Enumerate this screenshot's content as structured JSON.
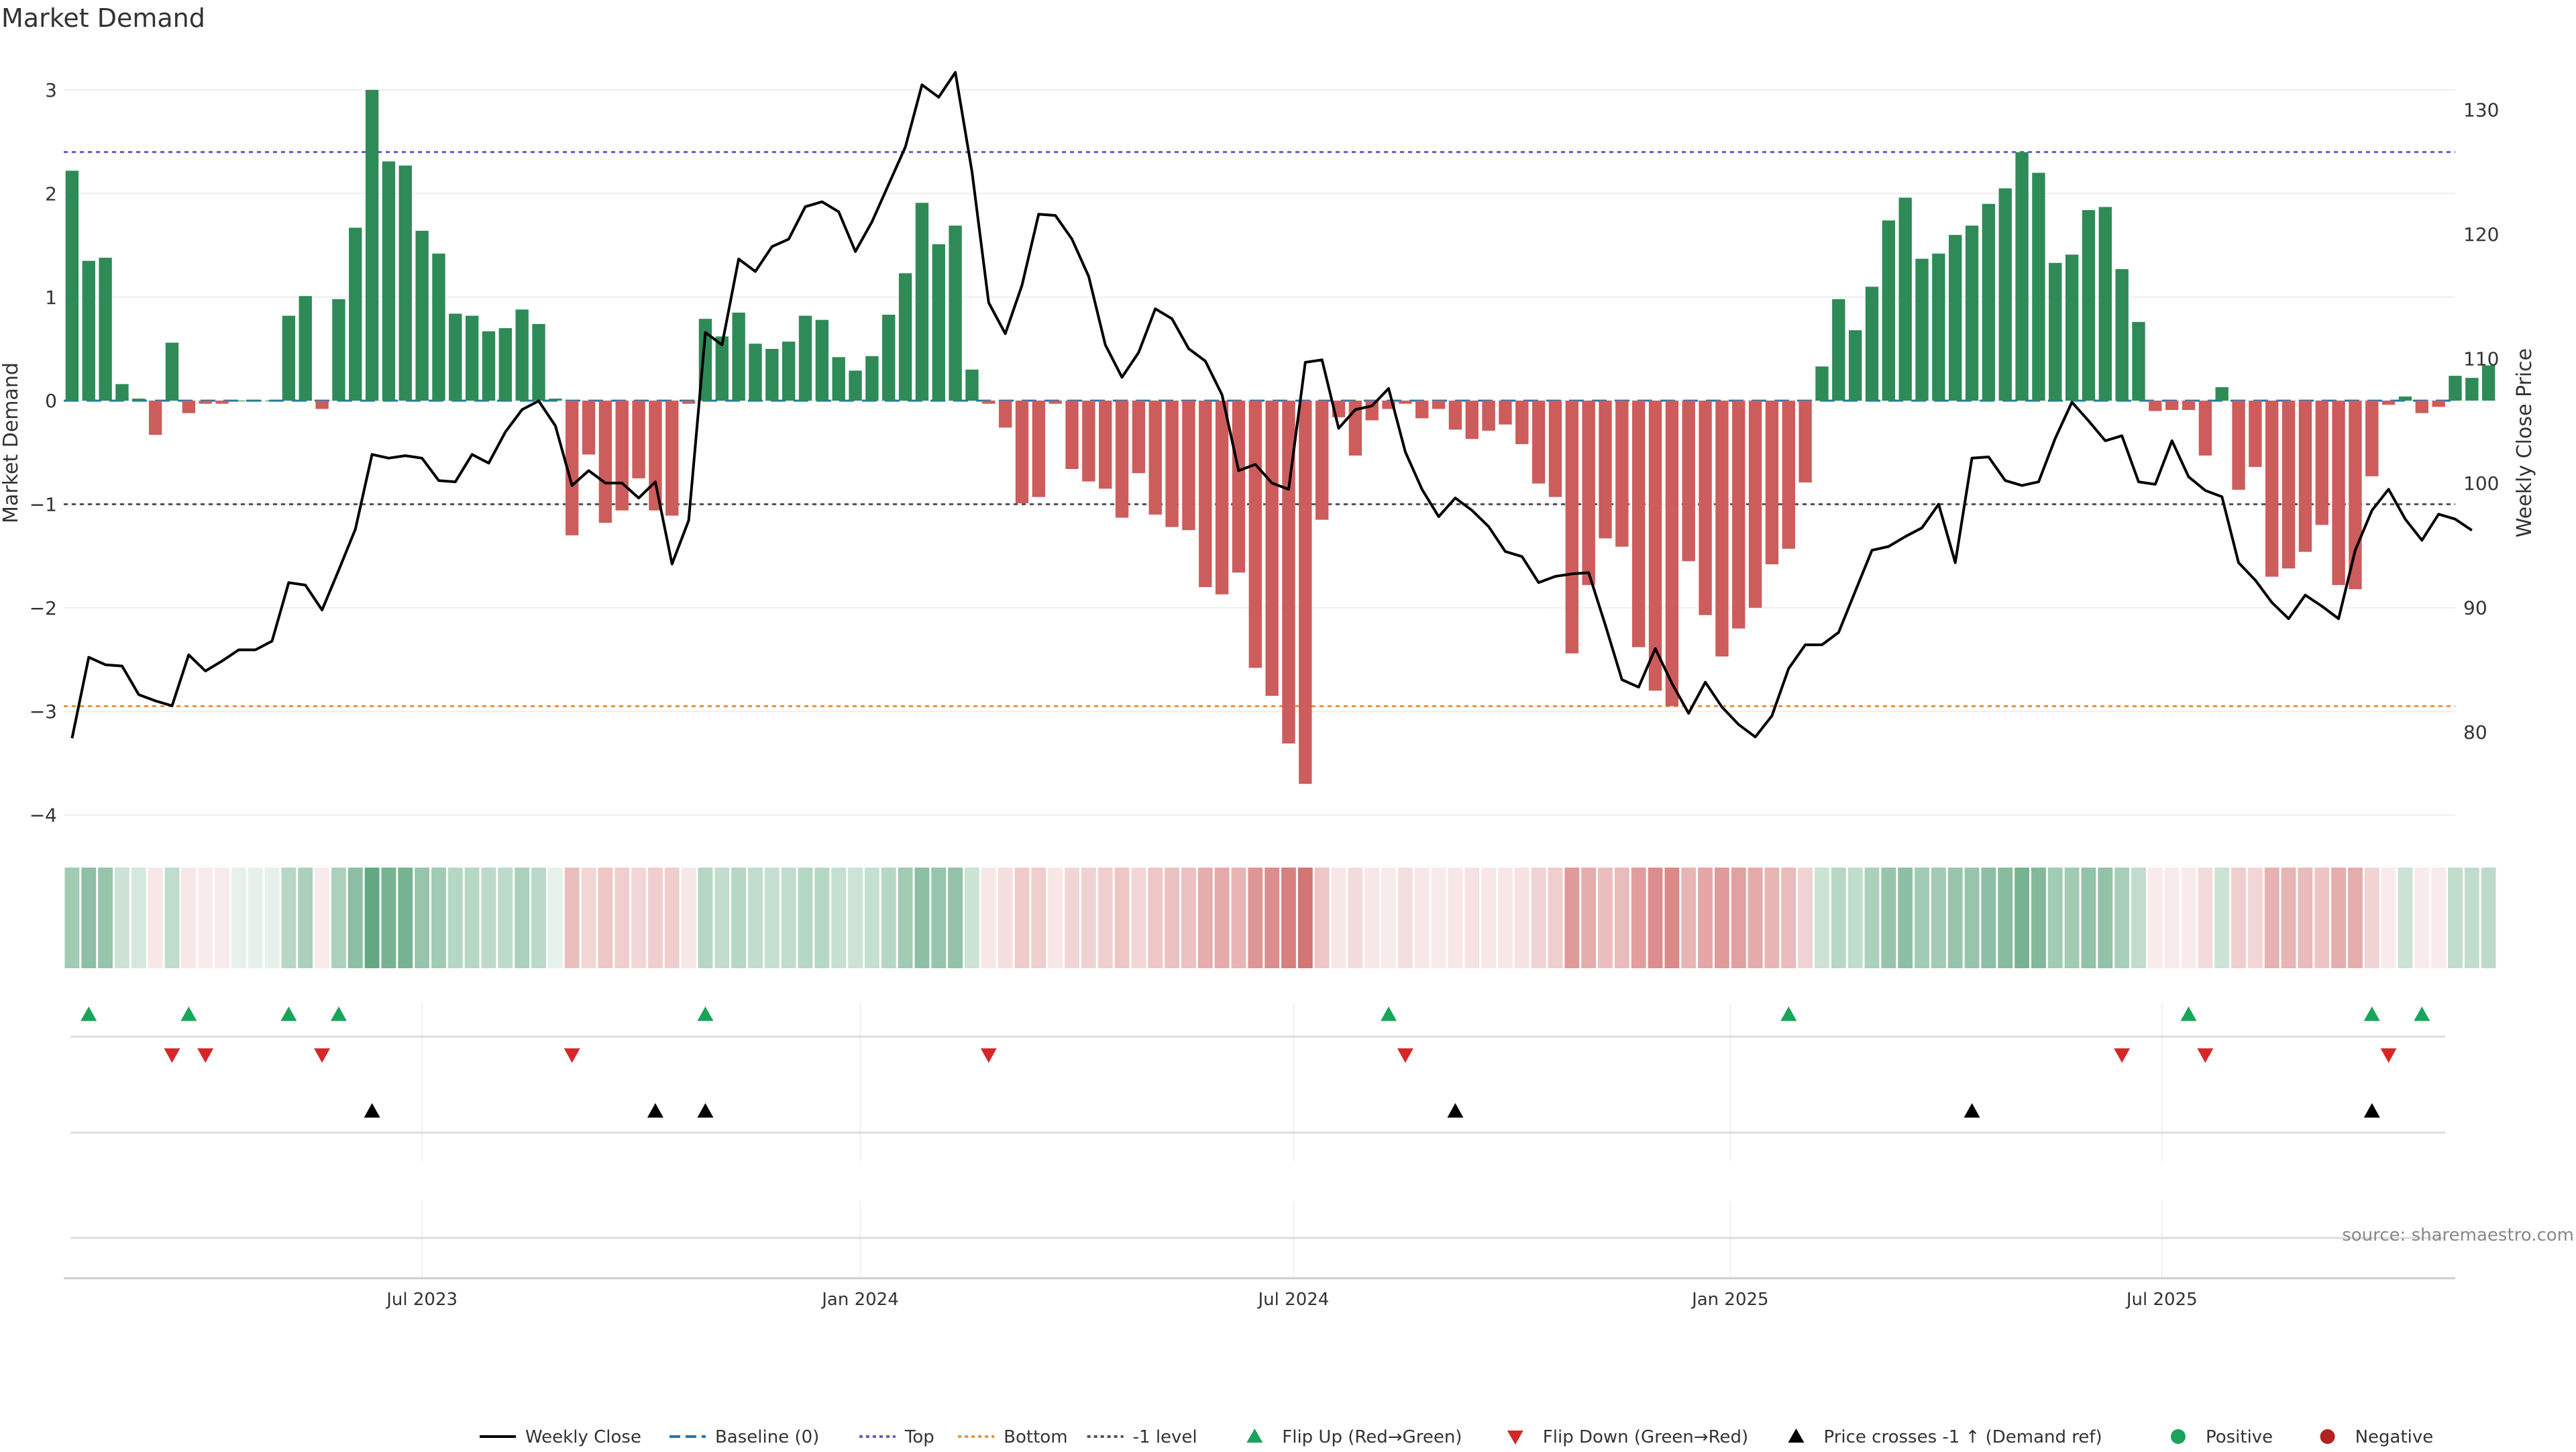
{
  "chart_data": {
    "type": "bar",
    "title": "Market Demand",
    "ylabel": "Market Demand",
    "y2label": "Weekly Close Price",
    "ylim": [
      -4.1,
      3.35
    ],
    "y2lim": [
      72.5,
      134.5
    ],
    "yticks": [
      3,
      2,
      1,
      0,
      -1,
      -2,
      -3,
      -4
    ],
    "ytick_labels": [
      "3",
      "2",
      "1",
      "0",
      "−1",
      "−2",
      "−3",
      "−4"
    ],
    "y2ticks": [
      130,
      120,
      110,
      100,
      90,
      80
    ],
    "y2tick_labels": [
      "130",
      "120",
      "110",
      "100",
      "90",
      "80"
    ],
    "x_range": [
      0,
      143.5
    ],
    "xticks": [
      {
        "label": "Jul 2023",
        "x": 21.5
      },
      {
        "label": "Jan 2024",
        "x": 47.8
      },
      {
        "label": "Jul 2024",
        "x": 73.8
      },
      {
        "label": "Jan 2025",
        "x": 100
      },
      {
        "label": "Jul 2025",
        "x": 125.9
      }
    ],
    "reference_lines": [
      {
        "name": "Baseline (0)",
        "value": 0,
        "color": "#1f77b4"
      },
      {
        "name": "Top",
        "value": 2.4,
        "color": "#6a5acd"
      },
      {
        "name": "Bottom",
        "value": -2.95,
        "color": "#e8943a"
      },
      {
        "name": "-1 level",
        "value": -1,
        "color": "#555555"
      }
    ],
    "colors": {
      "positive": "#2e8b57",
      "negative": "#cd5c5c",
      "price_line": "#000000",
      "flip_up": "#1aa35a",
      "flip_down": "#d62728",
      "cross": "#000000",
      "negative_dot": "#b22222",
      "axis_text": "#333333",
      "grid": "#eeeeee"
    },
    "bars": {
      "values": [
        2.22,
        1.35,
        1.38,
        0.16,
        0.02,
        -0.33,
        0.56,
        -0.12,
        -0.03,
        -0.03,
        0,
        0,
        0,
        0.82,
        1.01,
        -0.08,
        0.98,
        1.67,
        3.0,
        2.31,
        2.27,
        1.64,
        1.42,
        0.84,
        0.82,
        0.67,
        0.7,
        0.88,
        0.74,
        0.02,
        -1.3,
        -0.52,
        -1.18,
        -1.06,
        -0.75,
        -1.06,
        -1.11,
        -0.03,
        0.79,
        0.62,
        0.85,
        0.55,
        0.5,
        0.57,
        0.82,
        0.78,
        0.42,
        0.29,
        0.43,
        0.83,
        1.23,
        1.91,
        1.51,
        1.69,
        0.3,
        -0.03,
        -0.26,
        -0.99,
        -0.93,
        -0.03,
        -0.66,
        -0.78,
        -0.85,
        -1.13,
        -0.7,
        -1.1,
        -1.22,
        -1.25,
        -1.8,
        -1.87,
        -1.66,
        -2.58,
        -2.85,
        -3.31,
        -3.7,
        -1.15,
        -0.16,
        -0.53,
        -0.19,
        -0.08,
        -0.03,
        -0.17,
        -0.08,
        -0.28,
        -0.37,
        -0.29,
        -0.23,
        -0.42,
        -0.8,
        -0.93,
        -2.44,
        -1.78,
        -1.33,
        -1.41,
        -2.38,
        -2.8,
        -2.95,
        -1.55,
        -2.07,
        -2.47,
        -2.2,
        -2.0,
        -1.58,
        -1.43,
        -0.79,
        0.33,
        0.98,
        0.68,
        1.1,
        1.74,
        1.96,
        1.37,
        1.42,
        1.6,
        1.69,
        1.9,
        2.05,
        2.4,
        2.2,
        1.33,
        1.41,
        1.84,
        1.87,
        1.27,
        0.76,
        -0.1,
        -0.09,
        -0.09,
        -0.53,
        0.13,
        -0.86,
        -0.64,
        -1.7,
        -1.62,
        -1.46,
        -1.2,
        -1.78,
        -1.82,
        -0.73,
        -0.04,
        0.04,
        -0.12,
        -0.06,
        0.24,
        0.22,
        0.34
      ]
    },
    "price_line": {
      "name": "Weekly Close",
      "values": [
        79.5,
        86,
        85.4,
        85.3,
        83,
        82.5,
        82.1,
        86.2,
        84.9,
        85.7,
        86.6,
        86.6,
        87.3,
        92,
        91.8,
        89.8,
        93,
        96.3,
        102.3,
        102,
        102.2,
        102,
        100.2,
        100.1,
        102.3,
        101.6,
        104.1,
        105.9,
        106.6,
        104.6,
        99.8,
        101,
        100,
        100,
        98.8,
        100.1,
        93.5,
        97,
        112.1,
        111.1,
        118,
        117,
        119,
        119.6,
        122.2,
        122.6,
        121.8,
        118.6,
        121,
        124,
        127,
        132,
        131,
        133,
        125,
        114.5,
        112,
        115.9,
        121.6,
        121.5,
        119.6,
        116.6,
        111.1,
        108.5,
        110.5,
        114,
        113.2,
        110.8,
        109.8,
        107.1,
        101,
        101.5,
        100,
        99.5,
        109.7,
        109.9,
        104.4,
        105.9,
        106.2,
        107.6,
        102.5,
        99.5,
        97.3,
        98.8,
        97.8,
        96.5,
        94.5,
        94.1,
        92,
        92.5,
        92.7,
        92.8,
        88.6,
        84.2,
        83.6,
        86.7,
        83.9,
        81.5,
        84,
        82,
        80.6,
        79.6,
        81.3,
        85.1,
        87,
        87,
        88,
        91.3,
        94.6,
        94.9,
        95.7,
        96.4,
        98.3,
        93.6,
        102,
        102.1,
        100.2,
        99.8,
        100.1,
        103.6,
        106.5,
        105,
        103.4,
        103.8,
        100.1,
        99.9,
        103.4,
        100.5,
        99.4,
        98.9,
        93.6,
        92.2,
        90.4,
        89.1,
        91,
        90.1,
        89.1,
        94.6,
        97.8,
        99.5,
        97.1,
        95.4,
        97.5,
        97.1,
        96.2
      ]
    },
    "strip_alphas": [
      0.45,
      0.55,
      0.5,
      0.25,
      0.2,
      0.15,
      0.3,
      0.15,
      0.12,
      0.12,
      0.12,
      0.12,
      0.12,
      0.35,
      0.4,
      0.12,
      0.4,
      0.55,
      0.75,
      0.65,
      0.65,
      0.5,
      0.45,
      0.35,
      0.35,
      0.32,
      0.32,
      0.4,
      0.33,
      0.12,
      0.4,
      0.25,
      0.35,
      0.3,
      0.25,
      0.3,
      0.3,
      0.15,
      0.35,
      0.3,
      0.35,
      0.3,
      0.28,
      0.3,
      0.35,
      0.35,
      0.28,
      0.25,
      0.28,
      0.35,
      0.45,
      0.55,
      0.5,
      0.52,
      0.25,
      0.15,
      0.2,
      0.32,
      0.3,
      0.15,
      0.25,
      0.28,
      0.3,
      0.35,
      0.25,
      0.35,
      0.38,
      0.38,
      0.5,
      0.52,
      0.45,
      0.65,
      0.7,
      0.78,
      0.85,
      0.35,
      0.15,
      0.22,
      0.15,
      0.12,
      0.2,
      0.15,
      0.12,
      0.15,
      0.18,
      0.15,
      0.15,
      0.18,
      0.28,
      0.3,
      0.62,
      0.5,
      0.4,
      0.42,
      0.6,
      0.7,
      0.72,
      0.45,
      0.55,
      0.62,
      0.58,
      0.52,
      0.45,
      0.42,
      0.28,
      0.25,
      0.35,
      0.3,
      0.4,
      0.5,
      0.55,
      0.45,
      0.45,
      0.5,
      0.5,
      0.55,
      0.58,
      0.65,
      0.6,
      0.45,
      0.45,
      0.52,
      0.52,
      0.42,
      0.3,
      0.12,
      0.12,
      0.12,
      0.22,
      0.25,
      0.3,
      0.25,
      0.48,
      0.46,
      0.42,
      0.36,
      0.5,
      0.5,
      0.28,
      0.12,
      0.25,
      0.12,
      0.12,
      0.3,
      0.3,
      0.32
    ],
    "events": {
      "flip_up": [
        1,
        7,
        13,
        16,
        38,
        79,
        103,
        127,
        138,
        141
      ],
      "flip_down": [
        6,
        8,
        15,
        30,
        55,
        80,
        123,
        128,
        139
      ],
      "price_cross": [
        18,
        35,
        38,
        83,
        114,
        138
      ]
    },
    "source": "source: sharemaestro.com",
    "legend": {
      "items": [
        {
          "label": "Weekly Close",
          "kind": "line"
        },
        {
          "label": "Baseline (0)",
          "kind": "dash"
        },
        {
          "label": "Top",
          "kind": "dot-top"
        },
        {
          "label": "Bottom",
          "kind": "dot-bottom"
        },
        {
          "label": "-1 level",
          "kind": "dot-level"
        },
        {
          "label": "Flip Up (Red→Green)",
          "kind": "tri-up"
        },
        {
          "label": "Flip Down (Green→Red)",
          "kind": "tri-down"
        },
        {
          "label": "Price crosses -1 ↑ (Demand ref)",
          "kind": "tri-cross"
        },
        {
          "label": "Positive",
          "kind": "dot-pos"
        },
        {
          "label": "Negative",
          "kind": "dot-neg"
        }
      ]
    }
  }
}
